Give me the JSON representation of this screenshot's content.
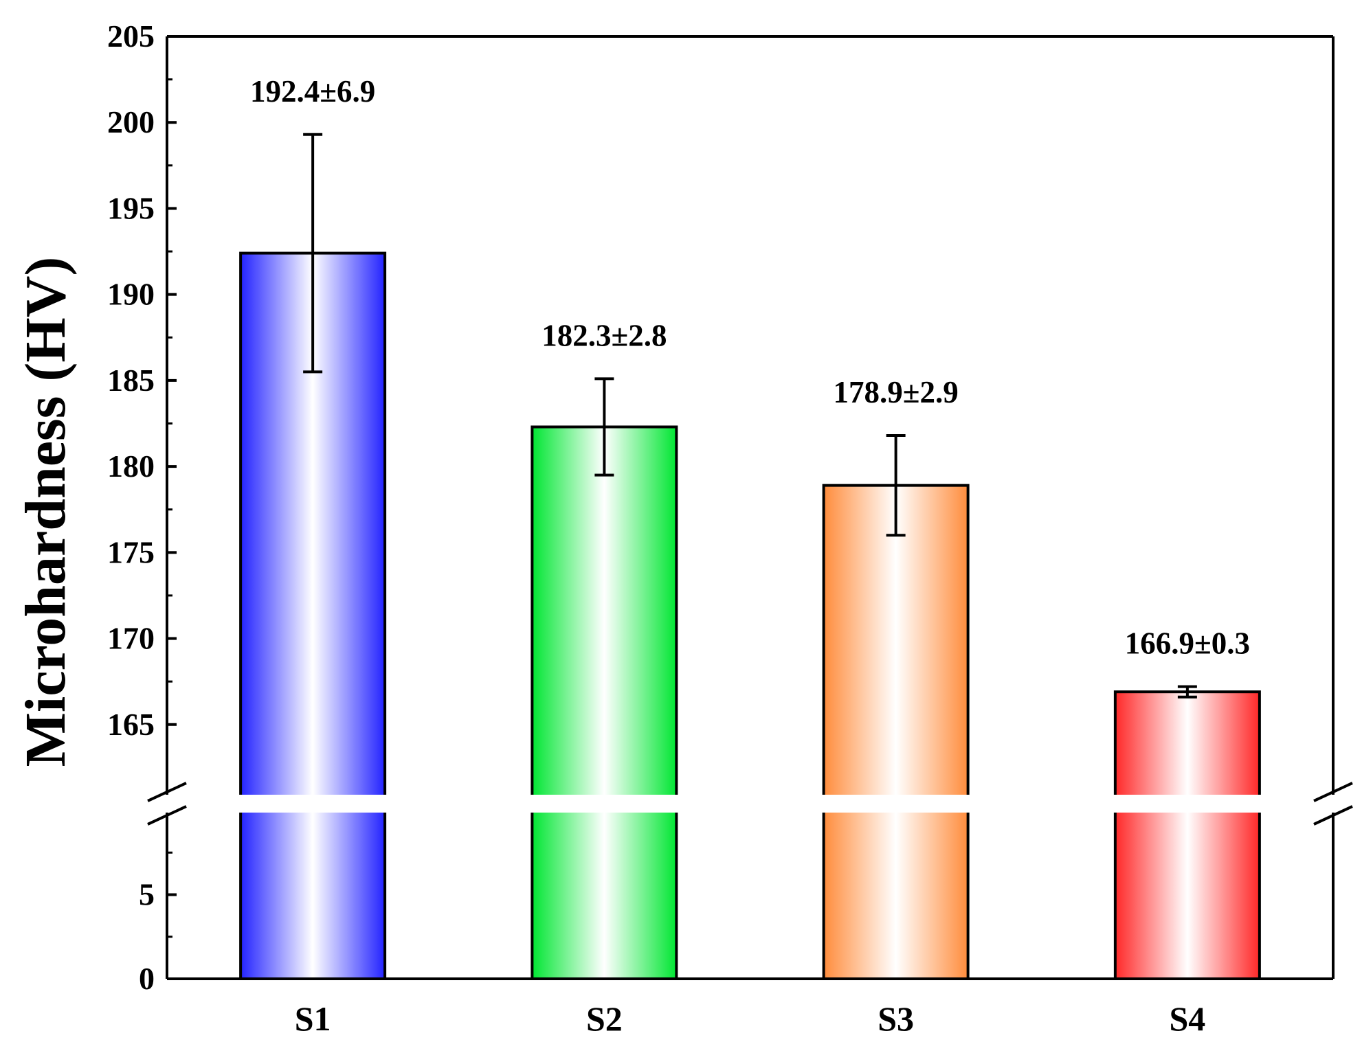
{
  "chart_data": {
    "type": "bar",
    "title": "",
    "xlabel": "",
    "ylabel": "Microhardness (HV)",
    "categories": [
      "S1",
      "S2",
      "S3",
      "S4"
    ],
    "values": [
      192.4,
      182.3,
      178.9,
      166.9
    ],
    "errors": [
      6.9,
      2.8,
      2.9,
      0.3
    ],
    "data_labels": [
      "192.4±6.9",
      "182.3±2.8",
      "178.9±2.9",
      "166.9±0.3"
    ],
    "bar_colors": [
      "#2323ff",
      "#00e632",
      "#ff8c3c",
      "#ff2828"
    ],
    "y_axis": {
      "broken": true,
      "lower_segment": {
        "range": [
          0,
          10
        ],
        "ticks": [
          0,
          5
        ],
        "tick_labels": [
          "0",
          "5"
        ]
      },
      "upper_segment": {
        "range": [
          160,
          205
        ],
        "ticks": [
          165,
          170,
          175,
          180,
          185,
          190,
          195,
          200,
          205
        ],
        "tick_labels": [
          "165",
          "170",
          "175",
          "180",
          "185",
          "190",
          "195",
          "200",
          "205"
        ]
      }
    },
    "grid": false,
    "legend": "none"
  }
}
